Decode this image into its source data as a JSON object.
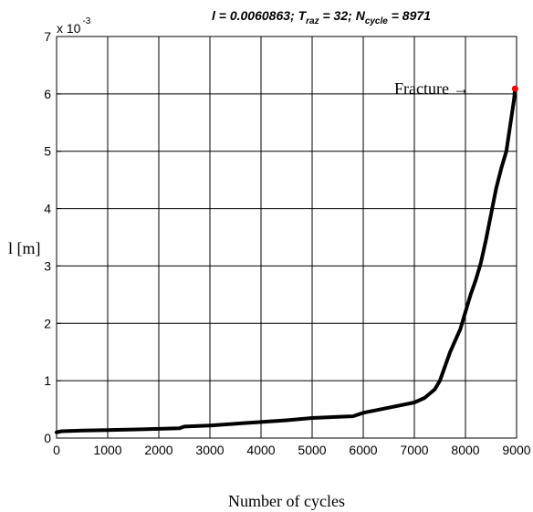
{
  "chart_data": {
    "type": "line",
    "title": {
      "l_sym": "l",
      "l_value": " = 0.0060863;  ",
      "t_sym": "T",
      "t_sub": "raz",
      "t_value": " = 32;  ",
      "n_sym": "N",
      "n_sub": "cycle",
      "n_value": " = 8971"
    },
    "xlabel": "Number of cycles",
    "ylabel": "l [m]",
    "y_multiplier": {
      "base": "x 10",
      "exponent": "-3"
    },
    "xlim": [
      0,
      9000
    ],
    "ylim": [
      0,
      7
    ],
    "x_ticks": [
      0,
      1000,
      2000,
      3000,
      4000,
      5000,
      6000,
      7000,
      8000,
      9000
    ],
    "y_ticks": [
      0,
      1,
      2,
      3,
      4,
      5,
      6,
      7
    ],
    "grid": true,
    "annotation": {
      "text": "Fracture  →"
    },
    "fracture_point": {
      "x": 8971,
      "y": 6.09,
      "color": "#ff0000"
    },
    "series": [
      {
        "color": "#000000",
        "x": [
          0,
          100,
          500,
          1000,
          1500,
          2000,
          2400,
          2500,
          3000,
          3500,
          4000,
          4500,
          5000,
          5500,
          5800,
          6000,
          6500,
          7000,
          7200,
          7400,
          7500,
          7600,
          7700,
          7800,
          7900,
          8000,
          8100,
          8200,
          8300,
          8400,
          8500,
          8600,
          8700,
          8800,
          8850,
          8900,
          8950,
          8971
        ],
        "y": [
          0.1,
          0.12,
          0.13,
          0.14,
          0.15,
          0.16,
          0.17,
          0.2,
          0.22,
          0.25,
          0.28,
          0.31,
          0.35,
          0.37,
          0.38,
          0.44,
          0.53,
          0.62,
          0.7,
          0.85,
          1.0,
          1.25,
          1.5,
          1.7,
          1.9,
          2.2,
          2.5,
          2.75,
          3.05,
          3.45,
          3.9,
          4.35,
          4.7,
          5.0,
          5.3,
          5.6,
          5.9,
          6.09
        ]
      }
    ]
  }
}
